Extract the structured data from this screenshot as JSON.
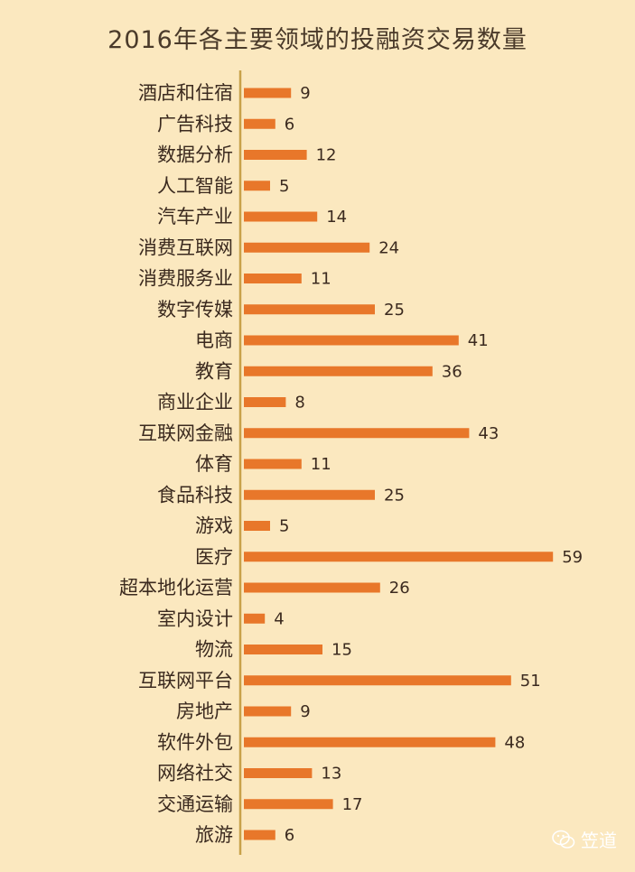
{
  "chart_data": {
    "type": "bar",
    "orientation": "horizontal",
    "title": "2016年各主要领域的投融资交易数量",
    "categories": [
      "酒店和住宿",
      "广告科技",
      "数据分析",
      "人工智能",
      "汽车产业",
      "消费互联网",
      "消费服务业",
      "数字传媒",
      "电商",
      "教育",
      "商业企业",
      "互联网金融",
      "体育",
      "食品科技",
      "游戏",
      "医疗",
      "超本地化运营",
      "室内设计",
      "物流",
      "互联网平台",
      "房地产",
      "软件外包",
      "网络社交",
      "交通运输",
      "旅游"
    ],
    "values": [
      9,
      6,
      12,
      5,
      14,
      24,
      11,
      25,
      41,
      36,
      8,
      43,
      11,
      25,
      5,
      59,
      26,
      4,
      15,
      51,
      9,
      48,
      13,
      17,
      6
    ],
    "xlim": [
      0,
      60
    ],
    "bar_color": "#e8772a",
    "axis_color": "#c8a24a",
    "highlight_label_colors": {
      "商业企业": "#8a7a6a",
      "医疗": "#cc2a2a"
    },
    "label_color": "#3b2a1f",
    "grid": false,
    "legend": "none"
  },
  "watermark": {
    "text": "笠道",
    "icon": "wechat-icon"
  }
}
